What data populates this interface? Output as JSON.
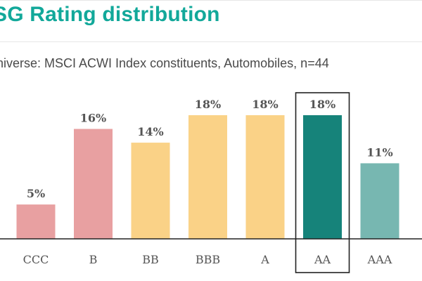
{
  "header": {
    "title": "SG Rating distribution",
    "subtitle": "niverse: MSCI ACWI Index constituents, Automobiles, n=44"
  },
  "colors": {
    "title": "#12a89a",
    "highlight_box": "#222222",
    "axis": "#222222"
  },
  "chart_data": {
    "type": "bar",
    "title": "SG Rating distribution",
    "subtitle": "niverse: MSCI ACWI Index constituents, Automobiles, n=44",
    "xlabel": "",
    "ylabel": "",
    "ylim": [
      0,
      20
    ],
    "grid": false,
    "highlighted_category": "AA",
    "categories": [
      "CCC",
      "B",
      "BB",
      "BBB",
      "A",
      "AA",
      "AAA"
    ],
    "values": [
      5,
      16,
      14,
      18,
      18,
      18,
      11
    ],
    "value_labels": [
      "5%",
      "16%",
      "14%",
      "18%",
      "18%",
      "18%",
      "11%"
    ],
    "bar_colors": [
      "#e8a0a1",
      "#e8a0a1",
      "#fad287",
      "#fad287",
      "#fad287",
      "#16837a",
      "#77b7b1"
    ]
  }
}
